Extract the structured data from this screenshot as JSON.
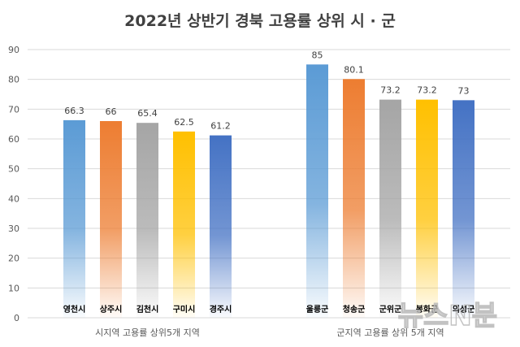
{
  "chart_data": {
    "type": "bar",
    "title": "2022년 상반기 경북 고용률 상위 시 · 군",
    "ylim": [
      0,
      90
    ],
    "yticks": [
      0,
      10,
      20,
      30,
      40,
      50,
      60,
      70,
      80,
      90
    ],
    "grid": true,
    "groups": [
      {
        "label": "시지역 고용률 상위5개 지역",
        "categories": [
          "영천시",
          "상주시",
          "김천시",
          "구미시",
          "경주시"
        ],
        "values": [
          66.3,
          66,
          65.4,
          62.5,
          61.2
        ],
        "value_labels": [
          "66.3",
          "66",
          "65.4",
          "62.5",
          "61.2"
        ],
        "colors": [
          "#5b9bd5",
          "#ed7d31",
          "#a5a5a5",
          "#ffc000",
          "#4472c4"
        ]
      },
      {
        "label": "군지역 고용률 상위 5개 지역",
        "categories": [
          "울릉군",
          "청송군",
          "군위군",
          "봉화군",
          "의성군"
        ],
        "values": [
          85,
          80.1,
          73.2,
          73.2,
          73
        ],
        "value_labels": [
          "85",
          "80.1",
          "73.2",
          "73.2",
          "73"
        ],
        "colors": [
          "#5b9bd5",
          "#ed7d31",
          "#a5a5a5",
          "#ffc000",
          "#4472c4"
        ]
      }
    ]
  },
  "watermark": "뉴스N분"
}
